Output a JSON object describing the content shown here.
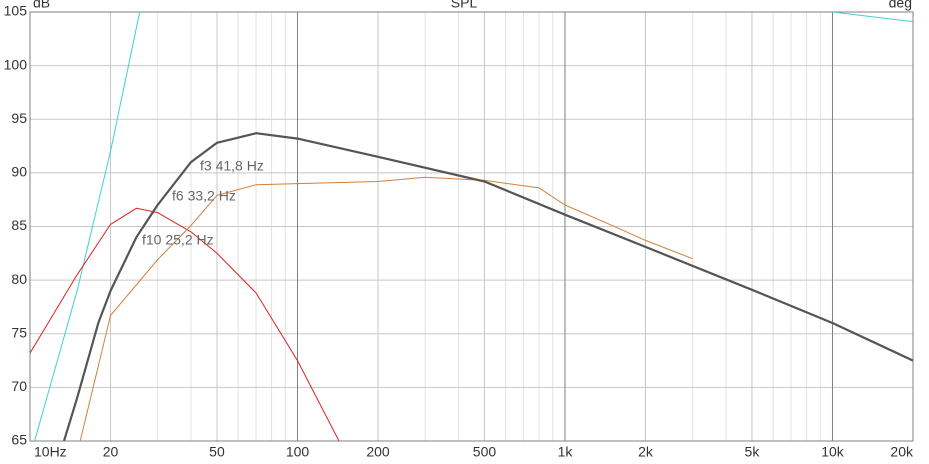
{
  "chart_data": {
    "type": "line",
    "title": "SPL",
    "ylabel": "dB",
    "y2label": "deg",
    "xscale": "log",
    "grid": true,
    "minor_grid": true,
    "xlim": [
      10,
      20000
    ],
    "ylim": [
      65,
      105
    ],
    "xticks": [
      {
        "value": 10,
        "label": "10Hz"
      },
      20,
      50,
      100,
      200,
      500,
      {
        "value": 1000,
        "label": "1k"
      },
      {
        "value": 2000,
        "label": "2k"
      },
      {
        "value": 5000,
        "label": "5k"
      },
      {
        "value": 10000,
        "label": "10k"
      },
      {
        "value": 20000,
        "label": "20k"
      }
    ],
    "yticks": [
      65,
      70,
      75,
      80,
      85,
      90,
      95,
      100,
      105
    ],
    "annotations": [
      "f3 41,8 Hz",
      "f6 33,2 Hz",
      "f10 25,2 Hz"
    ],
    "series": [
      {
        "color": "#40d0d0",
        "width": 1,
        "x": [
          10.4,
          15,
          20,
          25.7
        ],
        "values": [
          65,
          79,
          92,
          105
        ]
      },
      {
        "color": "#40d0d0",
        "width": 1,
        "x": [
          10000,
          20000
        ],
        "values": [
          105,
          104.1
        ]
      },
      {
        "color": "#e02020",
        "width": 1,
        "x": [
          10,
          15,
          20,
          25,
          30,
          40,
          50,
          70,
          100,
          143
        ],
        "values": [
          73.2,
          80.5,
          85.2,
          86.7,
          86.3,
          84.5,
          82.5,
          78.8,
          72.5,
          65
        ]
      },
      {
        "color": "#d2803a",
        "width": 1,
        "x": [
          15.4,
          20,
          30,
          40,
          50,
          70,
          100,
          200,
          300,
          500,
          800,
          1000,
          1500,
          2000,
          3000
        ],
        "values": [
          65,
          76.7,
          81.9,
          85.1,
          87.9,
          88.9,
          89,
          89.2,
          89.6,
          89.3,
          88.6,
          87,
          85.1,
          83.7,
          82
        ]
      },
      {
        "color": "#555555",
        "width": 2.2,
        "x": [
          13.4,
          15,
          18,
          20,
          25,
          30,
          40,
          50,
          70,
          100,
          200,
          500,
          1000,
          2000,
          5000,
          10000,
          20000
        ],
        "values": [
          65,
          69,
          76,
          79,
          84,
          87,
          91,
          92.8,
          93.7,
          93.2,
          91.5,
          89.2,
          86.1,
          83.1,
          79.1,
          76,
          72.5
        ]
      }
    ]
  }
}
